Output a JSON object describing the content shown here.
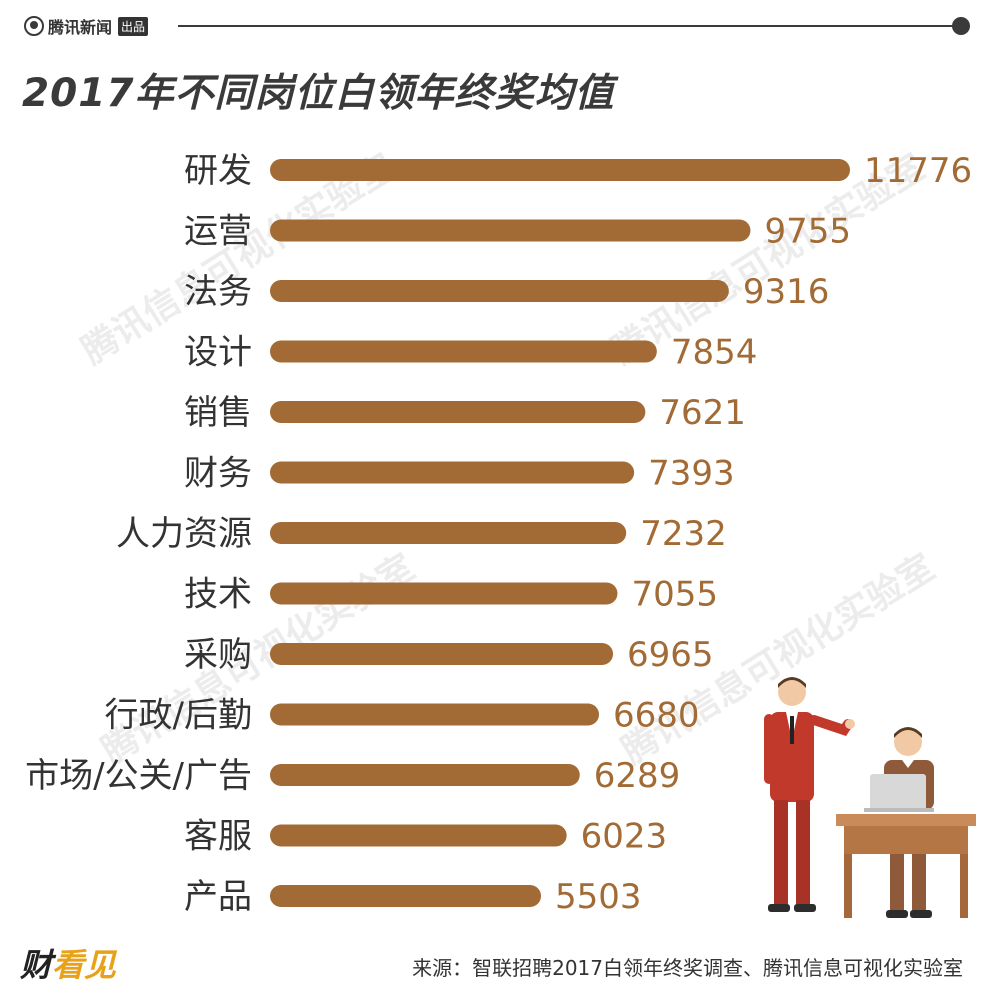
{
  "header": {
    "brand": "腾讯新闻",
    "brand_tag": "出品",
    "title": "2017年不同岗位白领年终奖均值"
  },
  "watermark": "腾讯信息可视化实验室",
  "footer": {
    "logo": "财",
    "logo_accent": "看见",
    "source": "来源：智联招聘2017白领年终奖调查、腾讯信息可视化实验室"
  },
  "colors": {
    "bar": "#a26b35",
    "value_text": "#a26b35",
    "dark": "#3a3a3a"
  },
  "chart_data": {
    "type": "bar",
    "orientation": "horizontal",
    "title": "2017年不同岗位白领年终奖均值",
    "categories": [
      "研发",
      "运营",
      "法务",
      "设计",
      "销售",
      "财务",
      "人力资源",
      "技术",
      "采购",
      "行政/后勤",
      "市场/公关/广告",
      "客服",
      "产品"
    ],
    "values": [
      11776,
      9755,
      9316,
      7854,
      7621,
      7393,
      7232,
      7055,
      6965,
      6680,
      6289,
      6023,
      5503
    ],
    "xlim": [
      0,
      11776
    ],
    "grid": false,
    "legend": "none"
  }
}
